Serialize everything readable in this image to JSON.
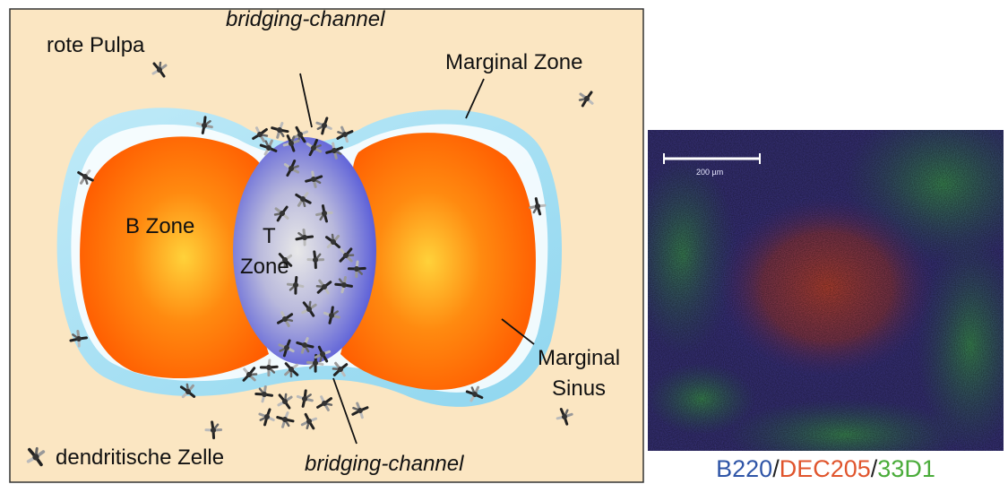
{
  "diagram": {
    "labels": {
      "rote_pulpa": "rote Pulpa",
      "marginal_zone": "Marginal Zone",
      "bridging_channel_top": "bridging-channel",
      "bridging_channel_bottom": "bridging-channel",
      "b_zone": "B Zone",
      "t_zone_line1": "T",
      "t_zone_line2": "Zone",
      "marginal_sinus_line1": "Marginal",
      "marginal_sinus_line2": "Sinus",
      "legend_dendritic_cell": "dendritische Zelle"
    },
    "colors": {
      "background": "#fbe6c2",
      "b_zone_outer": "#ff5a00",
      "b_zone_inner": "#ffd23a",
      "t_zone_outer": "#4b4fd8",
      "t_zone_inner": "#e6e6e6",
      "marginal_zone": "#9edcf2",
      "marginal_zone_inner": "#ffffff"
    },
    "icons": {
      "dendritic_cell": "dendritic-cell-icon"
    }
  },
  "micrograph": {
    "scale_bar_label": "200 µm",
    "stain_caption": {
      "b220": "B220",
      "separator1": "/",
      "dec205": "DEC205",
      "separator2": "/",
      "d33d1": "33D1"
    },
    "colors": {
      "b220": "#2f55a7",
      "dec205": "#e0552d",
      "d33d1": "#4aac3a"
    }
  }
}
